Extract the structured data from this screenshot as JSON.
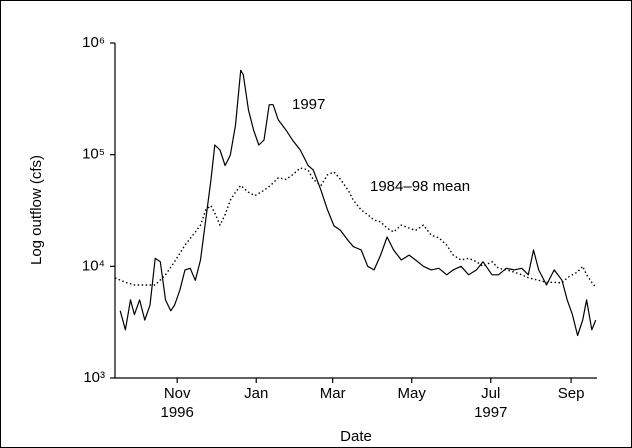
{
  "chart_data": {
    "type": "line",
    "x_label": "Date",
    "y_label": "Log outflow (cfs)",
    "log_scale_y": true,
    "grid": false,
    "xlim": [
      -3,
      369
    ],
    "ylim": [
      1000,
      1000000
    ],
    "xticks": [
      {
        "value": 45,
        "label": "Nov"
      },
      {
        "value": 106,
        "label": "Jan"
      },
      {
        "value": 165,
        "label": "Mar"
      },
      {
        "value": 226,
        "label": "May"
      },
      {
        "value": 287,
        "label": "Jul"
      },
      {
        "value": 349,
        "label": "Sep"
      }
    ],
    "xtick_sublabels": [
      {
        "value": 45,
        "label": "1996"
      },
      {
        "value": 287,
        "label": "1997"
      }
    ],
    "yticks": [
      {
        "value": 1000,
        "label": "10³"
      },
      {
        "value": 10000,
        "label": "10⁴"
      },
      {
        "value": 100000,
        "label": "10⁵"
      },
      {
        "value": 1000000,
        "label": "10⁶"
      }
    ],
    "series": [
      {
        "name": "1997",
        "color": "#000000",
        "dash": false,
        "x": [
          1,
          5,
          9,
          12,
          16,
          20,
          24,
          28,
          32,
          36,
          40,
          43,
          47,
          51,
          55,
          59,
          63,
          67,
          71,
          74,
          78,
          82,
          86,
          90,
          94,
          96,
          100,
          104,
          108,
          112,
          116,
          119,
          123,
          129,
          134,
          140,
          146,
          150,
          156,
          161,
          166,
          171,
          177,
          181,
          187,
          192,
          197,
          202,
          207,
          212,
          218,
          224,
          229,
          235,
          241,
          247,
          253,
          258,
          264,
          270,
          276,
          281,
          288,
          293,
          299,
          305,
          311,
          316,
          320,
          324,
          330,
          336,
          342,
          346,
          350,
          354,
          358,
          361,
          365,
          368
        ],
        "values": [
          4000,
          2700,
          5000,
          3700,
          5000,
          3300,
          4500,
          11800,
          11000,
          5000,
          4000,
          4500,
          6100,
          9300,
          9600,
          7500,
          11400,
          26000,
          59000,
          122000,
          110000,
          80000,
          99000,
          184000,
          570000,
          520000,
          250000,
          166000,
          122000,
          135000,
          280000,
          280000,
          205000,
          166000,
          135000,
          110000,
          80000,
          73000,
          48000,
          32000,
          23000,
          21000,
          17000,
          15000,
          14000,
          10000,
          9300,
          12600,
          18300,
          14000,
          11400,
          12600,
          11400,
          10000,
          9300,
          9600,
          8400,
          9300,
          10000,
          8400,
          9300,
          11000,
          8400,
          8400,
          9600,
          9300,
          9600,
          8400,
          14000,
          9300,
          6800,
          9300,
          7500,
          5000,
          3700,
          2400,
          3300,
          5000,
          2700,
          3300
        ]
      },
      {
        "name": "1984–98 mean",
        "color": "#000000",
        "dash": true,
        "x": [
          -3,
          5,
          12,
          20,
          28,
          36,
          43,
          51,
          59,
          63,
          67,
          71,
          74,
          78,
          82,
          86,
          90,
          94,
          100,
          105,
          112,
          117,
          123,
          129,
          134,
          140,
          146,
          150,
          156,
          161,
          166,
          171,
          177,
          181,
          187,
          192,
          197,
          202,
          207,
          212,
          218,
          224,
          229,
          235,
          241,
          247,
          253,
          258,
          264,
          270,
          276,
          281,
          288,
          293,
          299,
          305,
          311,
          316,
          324,
          330,
          336,
          342,
          346,
          350,
          354,
          358,
          361,
          365,
          368
        ],
        "values": [
          7900,
          7200,
          6800,
          6800,
          6800,
          8400,
          11000,
          15500,
          20300,
          23400,
          32000,
          35000,
          30000,
          23400,
          29000,
          39000,
          46000,
          53000,
          46000,
          43000,
          48000,
          53000,
          62000,
          60000,
          66000,
          76000,
          73000,
          60000,
          53000,
          66000,
          70000,
          60000,
          48000,
          39000,
          32000,
          29000,
          26000,
          25000,
          22000,
          20300,
          23400,
          22000,
          21000,
          23400,
          19000,
          18000,
          15500,
          12600,
          11400,
          11800,
          11000,
          10000,
          11000,
          9600,
          9300,
          8900,
          8400,
          7900,
          7500,
          7200,
          7200,
          7100,
          7900,
          8400,
          8900,
          10000,
          8400,
          7200,
          6500
        ]
      }
    ],
    "annotations": [
      "1997",
      "1984–98 mean"
    ]
  }
}
